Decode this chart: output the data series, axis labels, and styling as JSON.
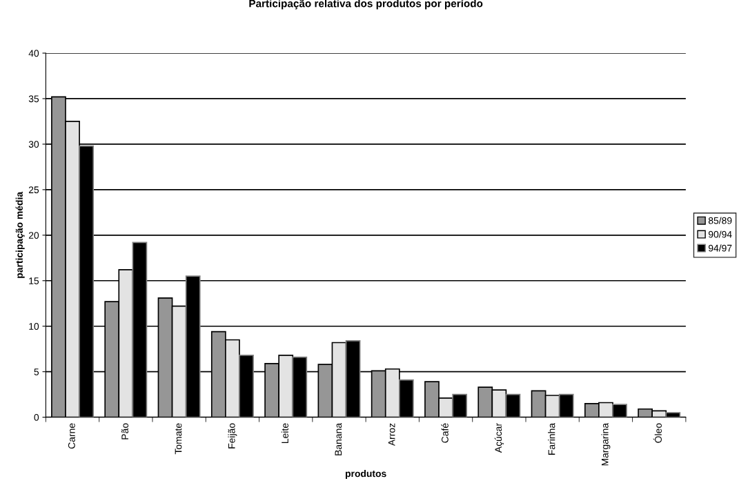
{
  "chart_data": {
    "type": "bar",
    "title": "Participação relativa dos produtos por período",
    "xlabel": "produtos",
    "ylabel": "participação média",
    "categories": [
      "Carne",
      "Pão",
      "Tomate",
      "Feijão",
      "Leite",
      "Banana",
      "Arroz",
      "Café",
      "Açúcar",
      "Farinha",
      "Margarina",
      "Óleo"
    ],
    "series": [
      {
        "name": "85/89",
        "color": "#969696",
        "values": [
          35.2,
          12.7,
          13.1,
          9.4,
          5.9,
          5.8,
          5.1,
          3.9,
          3.3,
          2.9,
          1.5,
          0.9
        ]
      },
      {
        "name": "90/94",
        "color": "#e3e3e3",
        "values": [
          32.5,
          16.2,
          12.2,
          8.5,
          6.8,
          8.2,
          5.3,
          2.1,
          3.0,
          2.4,
          1.6,
          0.7
        ]
      },
      {
        "name": "94/97",
        "color": "#000000",
        "values": [
          29.8,
          19.2,
          15.5,
          6.8,
          6.6,
          8.4,
          4.1,
          2.5,
          2.5,
          2.5,
          1.4,
          0.5
        ]
      }
    ],
    "ylim": [
      0,
      40
    ],
    "yticks": [
      0,
      5,
      10,
      15,
      20,
      25,
      30,
      35,
      40
    ],
    "grid": "y",
    "legend": "right"
  }
}
